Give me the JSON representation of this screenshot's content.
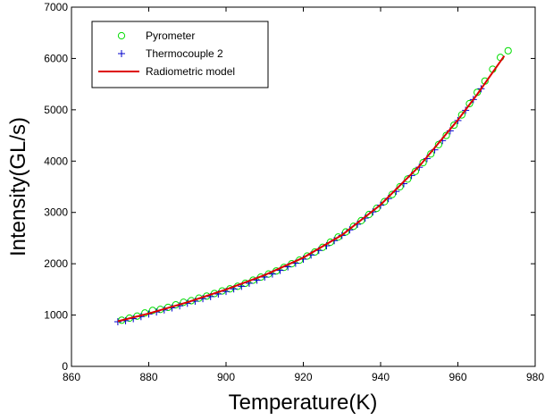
{
  "chart_data": {
    "type": "scatter",
    "title": "",
    "xlabel": "Temperature(K)",
    "ylabel": "Intensity(GL/s)",
    "xlim": [
      860,
      980
    ],
    "ylim": [
      0,
      7000
    ],
    "xticks": [
      "860",
      "880",
      "900",
      "920",
      "940",
      "960",
      "980"
    ],
    "yticks": [
      "0",
      "1000",
      "2000",
      "3000",
      "4000",
      "5000",
      "6000",
      "7000"
    ],
    "grid": false,
    "legend_position": "top-left",
    "series": [
      {
        "name": "Pyrometer",
        "marker": "circle",
        "color": "#00dd00",
        "points": [
          [
            873,
            900
          ],
          [
            875,
            940
          ],
          [
            877,
            980
          ],
          [
            879,
            1040
          ],
          [
            881,
            1090
          ],
          [
            883,
            1110
          ],
          [
            885,
            1150
          ],
          [
            887,
            1200
          ],
          [
            889,
            1250
          ],
          [
            891,
            1280
          ],
          [
            893,
            1330
          ],
          [
            895,
            1370
          ],
          [
            897,
            1420
          ],
          [
            899,
            1470
          ],
          [
            901,
            1510
          ],
          [
            903,
            1560
          ],
          [
            905,
            1620
          ],
          [
            907,
            1680
          ],
          [
            909,
            1740
          ],
          [
            911,
            1800
          ],
          [
            913,
            1860
          ],
          [
            915,
            1930
          ],
          [
            917,
            2000
          ],
          [
            919,
            2070
          ],
          [
            921,
            2150
          ],
          [
            923,
            2230
          ],
          [
            925,
            2320
          ],
          [
            927,
            2420
          ],
          [
            929,
            2520
          ],
          [
            931,
            2620
          ],
          [
            933,
            2730
          ],
          [
            935,
            2840
          ],
          [
            937,
            2960
          ],
          [
            939,
            3080
          ],
          [
            941,
            3210
          ],
          [
            943,
            3350
          ],
          [
            945,
            3500
          ],
          [
            947,
            3650
          ],
          [
            949,
            3800
          ],
          [
            951,
            3970
          ],
          [
            953,
            4140
          ],
          [
            955,
            4320
          ],
          [
            957,
            4500
          ],
          [
            959,
            4700
          ],
          [
            961,
            4900
          ],
          [
            963,
            5120
          ],
          [
            965,
            5340
          ],
          [
            967,
            5560
          ],
          [
            969,
            5790
          ],
          [
            971,
            6020
          ],
          [
            973,
            6150
          ]
        ]
      },
      {
        "name": "Thermocouple 2",
        "marker": "plus",
        "color": "#0000cc",
        "points": [
          [
            872,
            870
          ],
          [
            874,
            890
          ],
          [
            876,
            930
          ],
          [
            878,
            970
          ],
          [
            880,
            1020
          ],
          [
            882,
            1060
          ],
          [
            884,
            1100
          ],
          [
            886,
            1140
          ],
          [
            888,
            1180
          ],
          [
            890,
            1230
          ],
          [
            892,
            1270
          ],
          [
            894,
            1320
          ],
          [
            896,
            1360
          ],
          [
            898,
            1410
          ],
          [
            900,
            1460
          ],
          [
            902,
            1510
          ],
          [
            904,
            1560
          ],
          [
            906,
            1620
          ],
          [
            908,
            1680
          ],
          [
            910,
            1740
          ],
          [
            912,
            1800
          ],
          [
            914,
            1870
          ],
          [
            916,
            1940
          ],
          [
            918,
            2010
          ],
          [
            920,
            2090
          ],
          [
            922,
            2170
          ],
          [
            924,
            2260
          ],
          [
            926,
            2350
          ],
          [
            928,
            2450
          ],
          [
            930,
            2550
          ],
          [
            932,
            2660
          ],
          [
            934,
            2770
          ],
          [
            936,
            2890
          ],
          [
            938,
            3010
          ],
          [
            940,
            3140
          ],
          [
            942,
            3270
          ],
          [
            944,
            3410
          ],
          [
            946,
            3560
          ],
          [
            948,
            3720
          ],
          [
            950,
            3880
          ],
          [
            952,
            4050
          ],
          [
            954,
            4220
          ],
          [
            956,
            4400
          ],
          [
            958,
            4590
          ],
          [
            960,
            4790
          ],
          [
            962,
            4990
          ],
          [
            964,
            5200
          ],
          [
            966,
            5410
          ]
        ]
      },
      {
        "name": "Radiometric model",
        "marker": "line",
        "color": "#dd0000",
        "points": [
          [
            872,
            880
          ],
          [
            880,
            1030
          ],
          [
            890,
            1250
          ],
          [
            900,
            1500
          ],
          [
            910,
            1780
          ],
          [
            920,
            2120
          ],
          [
            930,
            2560
          ],
          [
            940,
            3150
          ],
          [
            950,
            3900
          ],
          [
            960,
            4800
          ],
          [
            965,
            5300
          ],
          [
            972,
            6050
          ]
        ]
      }
    ]
  }
}
